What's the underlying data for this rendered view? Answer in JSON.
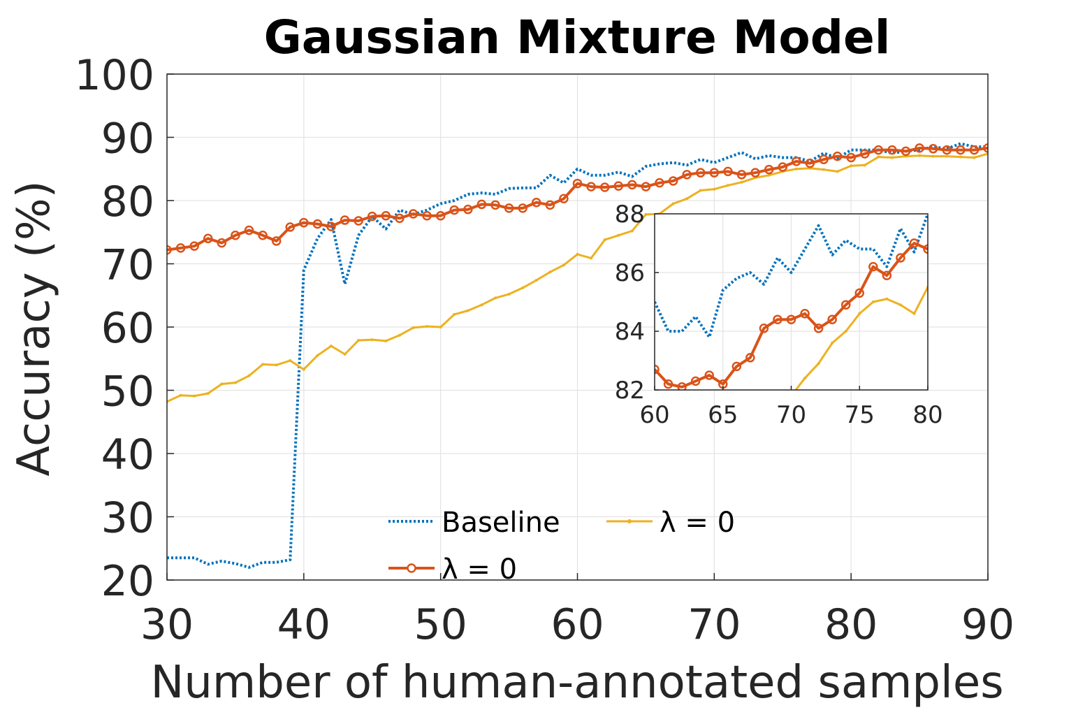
{
  "chart_data": {
    "type": "line",
    "title": "Gaussian Mixture Model",
    "xlabel": "Number of human-annotated samples",
    "ylabel": "Accuracy (%)",
    "xlim": [
      30,
      90
    ],
    "ylim": [
      20,
      100
    ],
    "xticks": [
      30,
      40,
      50,
      60,
      70,
      80,
      90
    ],
    "yticks": [
      20,
      30,
      40,
      50,
      60,
      70,
      80,
      90,
      100
    ],
    "grid": true,
    "legend": {
      "placement": "bottom-center",
      "columns": 2
    },
    "series": [
      {
        "name": "Baseline",
        "color": "#0072BD",
        "style": "dotted",
        "marker": "none",
        "x": [
          30,
          31,
          32,
          33,
          34,
          35,
          36,
          37,
          38,
          39,
          40,
          41,
          42,
          43,
          44,
          45,
          46,
          47,
          48,
          49,
          50,
          51,
          52,
          53,
          54,
          55,
          56,
          57,
          58,
          59,
          60,
          61,
          62,
          63,
          64,
          65,
          66,
          67,
          68,
          69,
          70,
          71,
          72,
          73,
          74,
          75,
          76,
          77,
          78,
          79,
          80,
          81,
          82,
          83,
          84,
          85,
          86,
          87,
          88,
          89,
          90
        ],
        "y": [
          23.5,
          23.5,
          23.5,
          22.5,
          23.0,
          22.6,
          22.0,
          22.8,
          22.8,
          23.2,
          69.0,
          74.0,
          77.0,
          66.8,
          74.5,
          77.5,
          75.5,
          78.5,
          77.8,
          78.5,
          79.5,
          80.0,
          81.0,
          81.2,
          81.0,
          81.9,
          82.0,
          82.0,
          84.0,
          82.8,
          85.0,
          84.0,
          84.0,
          84.5,
          83.8,
          85.4,
          85.8,
          86.0,
          85.6,
          86.5,
          86.0,
          86.8,
          87.6,
          86.6,
          87.1,
          86.8,
          86.8,
          86.2,
          87.5,
          86.7,
          88.0,
          88.0,
          88.0,
          87.5,
          87.8,
          88.0,
          88.5,
          88.2,
          89.0,
          88.5,
          88.5
        ]
      },
      {
        "name": "λ = 0",
        "color": "#D95319",
        "style": "solid",
        "marker": "circle",
        "x": [
          30,
          31,
          32,
          33,
          34,
          35,
          36,
          37,
          38,
          39,
          40,
          41,
          42,
          43,
          44,
          45,
          46,
          47,
          48,
          49,
          50,
          51,
          52,
          53,
          54,
          55,
          56,
          57,
          58,
          59,
          60,
          61,
          62,
          63,
          64,
          65,
          66,
          67,
          68,
          69,
          70,
          71,
          72,
          73,
          74,
          75,
          76,
          77,
          78,
          79,
          80,
          81,
          82,
          83,
          84,
          85,
          86,
          87,
          88,
          89,
          90
        ],
        "y": [
          72.2,
          72.5,
          72.8,
          74.0,
          73.3,
          74.5,
          75.3,
          74.5,
          73.6,
          75.8,
          76.5,
          76.3,
          75.9,
          76.9,
          76.8,
          77.5,
          77.6,
          77.2,
          77.9,
          77.6,
          77.6,
          78.5,
          78.6,
          79.4,
          79.3,
          78.8,
          78.8,
          79.7,
          79.3,
          80.3,
          82.7,
          82.2,
          82.1,
          82.3,
          82.5,
          82.2,
          82.8,
          83.1,
          84.1,
          84.4,
          84.4,
          84.6,
          84.1,
          84.4,
          84.9,
          85.3,
          86.2,
          85.9,
          86.5,
          87.0,
          86.8,
          87.4,
          88.0,
          88.0,
          87.8,
          88.3,
          88.2,
          88.0,
          88.0,
          88.0,
          88.3
        ]
      },
      {
        "name": "λ = 0",
        "color": "#EDB120",
        "style": "solid",
        "marker": "dot",
        "x": [
          30,
          31,
          32,
          33,
          34,
          35,
          36,
          37,
          38,
          39,
          40,
          41,
          42,
          43,
          44,
          45,
          46,
          47,
          48,
          49,
          50,
          51,
          52,
          53,
          54,
          55,
          56,
          57,
          58,
          59,
          60,
          61,
          62,
          63,
          64,
          65,
          66,
          67,
          68,
          69,
          70,
          71,
          72,
          73,
          74,
          75,
          76,
          77,
          78,
          79,
          80,
          81,
          82,
          83,
          84,
          85,
          86,
          87,
          88,
          89,
          90
        ],
        "y": [
          48.2,
          49.2,
          49.1,
          49.5,
          51.0,
          51.2,
          52.3,
          54.1,
          54.0,
          54.7,
          53.3,
          55.5,
          57.0,
          55.7,
          57.9,
          58.0,
          57.8,
          58.7,
          59.9,
          60.1,
          60.0,
          62.0,
          62.6,
          63.5,
          64.6,
          65.2,
          66.2,
          67.4,
          68.7,
          69.8,
          71.5,
          70.9,
          73.8,
          74.5,
          75.2,
          77.8,
          77.9,
          79.5,
          80.3,
          81.6,
          81.8,
          82.4,
          82.9,
          83.6,
          84.0,
          84.6,
          85.0,
          85.1,
          84.9,
          84.6,
          85.5,
          85.6,
          86.9,
          86.8,
          87.0,
          87.1,
          87.0,
          87.0,
          86.9,
          86.8,
          87.4
        ]
      }
    ],
    "inset": {
      "xlim": [
        60,
        80
      ],
      "ylim": [
        82,
        88
      ],
      "xticks": [
        60,
        65,
        70,
        75,
        80
      ],
      "yticks": [
        82,
        84,
        86,
        88
      ]
    }
  }
}
